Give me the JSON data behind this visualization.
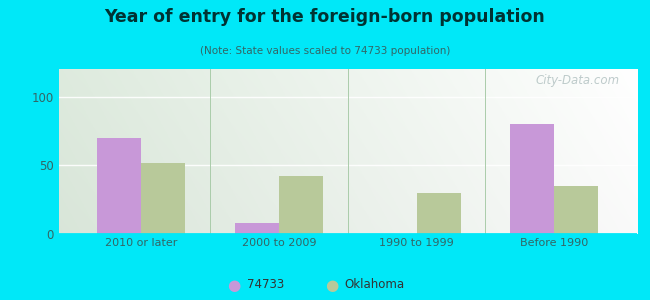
{
  "title": "Year of entry for the foreign-born population",
  "subtitle": "(Note: State values scaled to 74733 population)",
  "categories": [
    "2010 or later",
    "2000 to 2009",
    "1990 to 1999",
    "Before 1990"
  ],
  "values_74733": [
    70,
    8,
    0,
    80
  ],
  "values_oklahoma": [
    52,
    42,
    30,
    35
  ],
  "color_74733": "#c898d8",
  "color_oklahoma": "#b8c99a",
  "ylim": [
    0,
    120
  ],
  "yticks": [
    0,
    50,
    100
  ],
  "background_outer": "#00e8f8",
  "legend_label_74733": "74733",
  "legend_label_oklahoma": "Oklahoma",
  "bar_width": 0.32,
  "watermark": "City-Data.com"
}
